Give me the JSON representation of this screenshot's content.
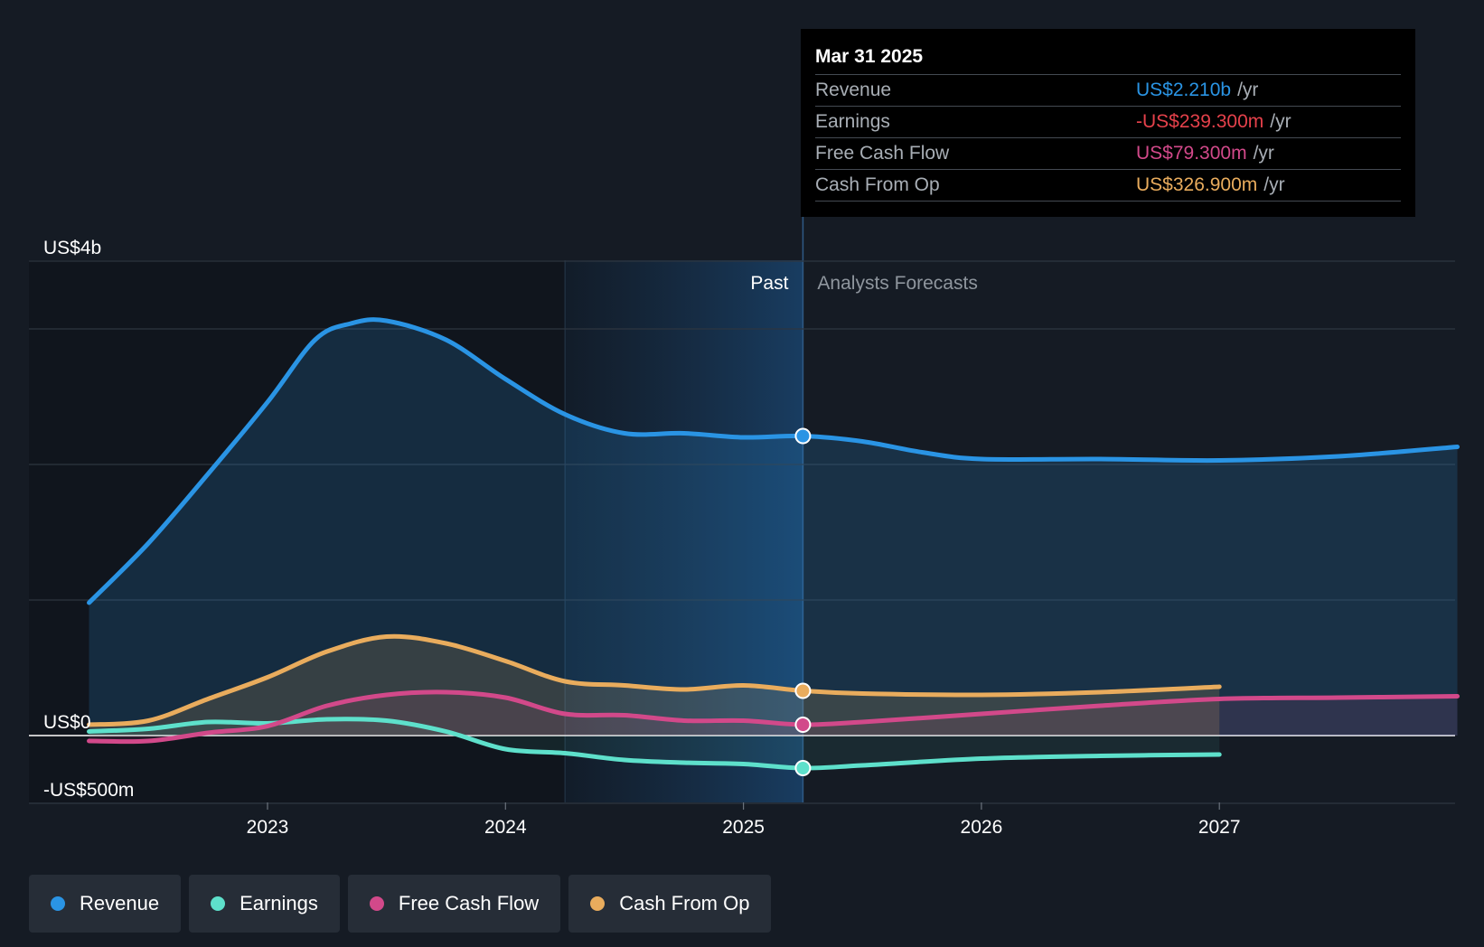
{
  "chart_data": {
    "type": "area",
    "x_axis": {
      "ticks": [
        "2023",
        "2024",
        "2025",
        "2026",
        "2027"
      ]
    },
    "y_axis": {
      "labels": [
        "US$4b",
        "US$0",
        "-US$500m"
      ],
      "min": -0.5,
      "max": 3.5,
      "unit": "US$ billions"
    },
    "regions": {
      "past_label": "Past",
      "forecast_label": "Analysts Forecasts",
      "divider_x": 2025.25
    },
    "series": [
      {
        "name": "Revenue",
        "color": "#2a94e4",
        "points": [
          [
            2022.25,
            0.98
          ],
          [
            2022.5,
            1.42
          ],
          [
            2022.75,
            1.93
          ],
          [
            2023.0,
            2.46
          ],
          [
            2023.2,
            2.92
          ],
          [
            2023.35,
            3.04
          ],
          [
            2023.5,
            3.06
          ],
          [
            2023.75,
            2.92
          ],
          [
            2024.0,
            2.63
          ],
          [
            2024.25,
            2.37
          ],
          [
            2024.5,
            2.23
          ],
          [
            2024.75,
            2.23
          ],
          [
            2025.0,
            2.2
          ],
          [
            2025.25,
            2.21
          ],
          [
            2025.5,
            2.17
          ],
          [
            2025.75,
            2.09
          ],
          [
            2026.0,
            2.04
          ],
          [
            2026.5,
            2.04
          ],
          [
            2027.0,
            2.03
          ],
          [
            2027.5,
            2.06
          ],
          [
            2028.0,
            2.13
          ]
        ]
      },
      {
        "name": "Earnings",
        "color": "#5ee0cb",
        "points": [
          [
            2022.25,
            0.03
          ],
          [
            2022.5,
            0.05
          ],
          [
            2022.75,
            0.1
          ],
          [
            2023.0,
            0.09
          ],
          [
            2023.25,
            0.12
          ],
          [
            2023.5,
            0.11
          ],
          [
            2023.75,
            0.03
          ],
          [
            2024.0,
            -0.1
          ],
          [
            2024.25,
            -0.13
          ],
          [
            2024.5,
            -0.18
          ],
          [
            2024.75,
            -0.2
          ],
          [
            2025.0,
            -0.21
          ],
          [
            2025.25,
            -0.24
          ],
          [
            2025.5,
            -0.22
          ],
          [
            2026.0,
            -0.17
          ],
          [
            2026.5,
            -0.15
          ],
          [
            2027.0,
            -0.14
          ]
        ]
      },
      {
        "name": "Free Cash Flow",
        "color": "#d2498a",
        "points": [
          [
            2022.25,
            -0.04
          ],
          [
            2022.5,
            -0.04
          ],
          [
            2022.75,
            0.02
          ],
          [
            2023.0,
            0.07
          ],
          [
            2023.25,
            0.22
          ],
          [
            2023.5,
            0.3
          ],
          [
            2023.75,
            0.32
          ],
          [
            2024.0,
            0.28
          ],
          [
            2024.25,
            0.16
          ],
          [
            2024.5,
            0.15
          ],
          [
            2024.75,
            0.11
          ],
          [
            2025.0,
            0.11
          ],
          [
            2025.25,
            0.08
          ],
          [
            2025.5,
            0.1
          ],
          [
            2026.0,
            0.16
          ],
          [
            2026.5,
            0.22
          ],
          [
            2027.0,
            0.27
          ],
          [
            2027.5,
            0.28
          ],
          [
            2028.0,
            0.29
          ]
        ]
      },
      {
        "name": "Cash From Op",
        "color": "#e9ac5d",
        "points": [
          [
            2022.25,
            0.08
          ],
          [
            2022.5,
            0.11
          ],
          [
            2022.75,
            0.27
          ],
          [
            2023.0,
            0.43
          ],
          [
            2023.25,
            0.62
          ],
          [
            2023.5,
            0.73
          ],
          [
            2023.75,
            0.68
          ],
          [
            2024.0,
            0.55
          ],
          [
            2024.25,
            0.4
          ],
          [
            2024.5,
            0.37
          ],
          [
            2024.75,
            0.34
          ],
          [
            2025.0,
            0.37
          ],
          [
            2025.25,
            0.33
          ],
          [
            2025.5,
            0.31
          ],
          [
            2026.0,
            0.3
          ],
          [
            2026.5,
            0.32
          ],
          [
            2027.0,
            0.36
          ]
        ]
      }
    ],
    "highlight_x": 2025.25
  },
  "tooltip": {
    "date": "Mar 31 2025",
    "rows": [
      {
        "label": "Revenue",
        "value": "US$2.210b",
        "unit": "/yr",
        "color": "#2a94e4"
      },
      {
        "label": "Earnings",
        "value": "-US$239.300m",
        "unit": "/yr",
        "color": "#e5414b"
      },
      {
        "label": "Free Cash Flow",
        "value": "US$79.300m",
        "unit": "/yr",
        "color": "#d2498a"
      },
      {
        "label": "Cash From Op",
        "value": "US$326.900m",
        "unit": "/yr",
        "color": "#e9ac5d"
      }
    ]
  },
  "legend": [
    {
      "label": "Revenue",
      "color": "#2a94e4"
    },
    {
      "label": "Earnings",
      "color": "#5ee0cb"
    },
    {
      "label": "Free Cash Flow",
      "color": "#d2498a"
    },
    {
      "label": "Cash From Op",
      "color": "#e9ac5d"
    }
  ]
}
